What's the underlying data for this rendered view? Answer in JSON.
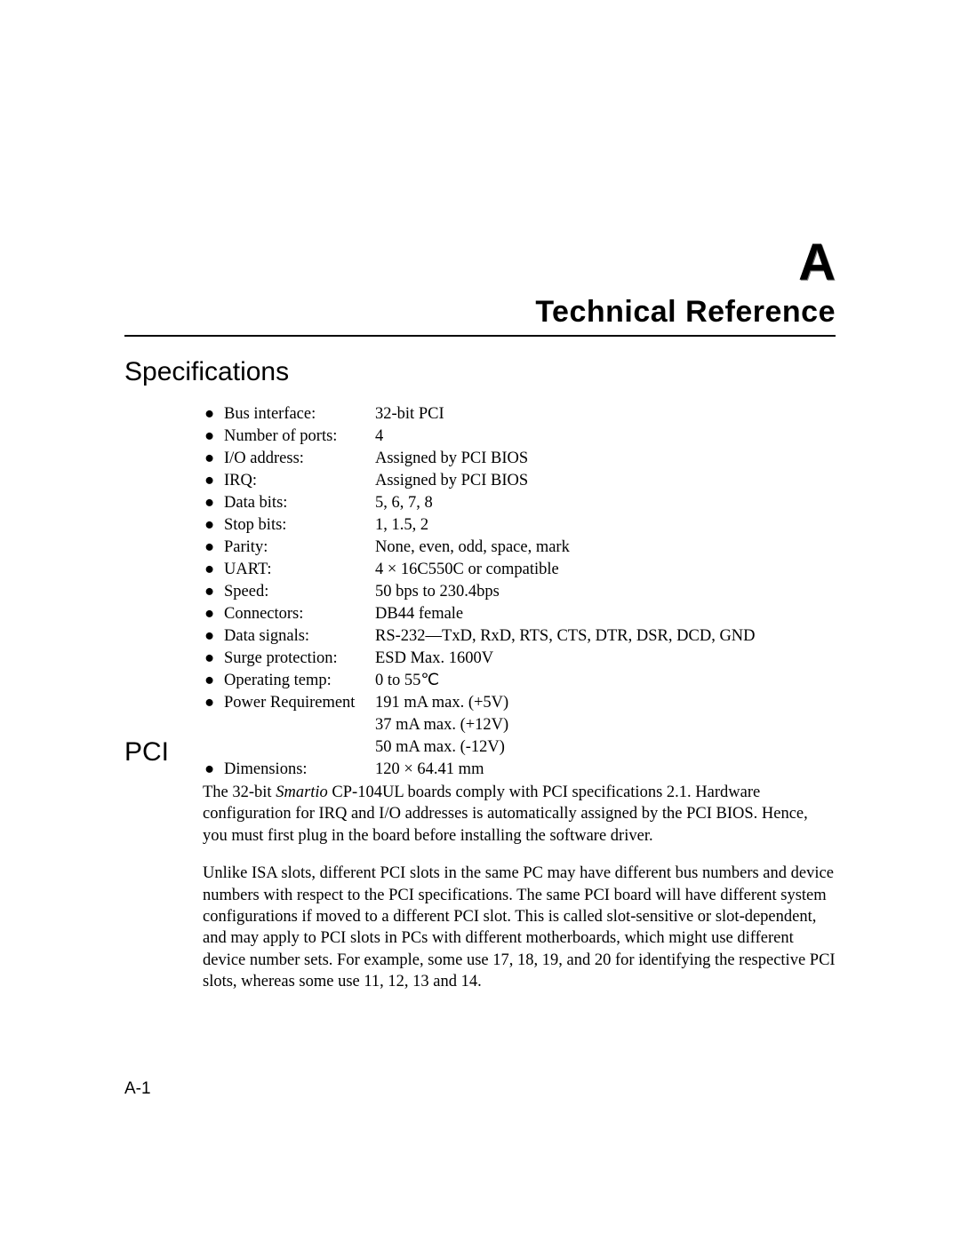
{
  "appendix_letter": "A",
  "title": "Technical Reference",
  "h2_specs": "Specifications",
  "h2_pci": "PCI",
  "bullet": "●",
  "specs": [
    {
      "label": "Bus interface:",
      "value": "32-bit PCI"
    },
    {
      "label": "Number of ports:",
      "value": "4"
    },
    {
      "label": "I/O address:",
      "value": "Assigned by PCI BIOS"
    },
    {
      "label": "IRQ:",
      "value": "Assigned by PCI BIOS"
    },
    {
      "label": "Data bits:",
      "value": "5, 6, 7, 8"
    },
    {
      "label": "Stop bits:",
      "value": "1, 1.5, 2"
    },
    {
      "label": "Parity:",
      "value": "None, even, odd, space, mark"
    },
    {
      "label": "UART:",
      "value": "4 × 16C550C or compatible"
    },
    {
      "label": "Speed:",
      "value": "50 bps to 230.4bps"
    },
    {
      "label": "Connectors:",
      "value": "DB44 female"
    },
    {
      "label": "Data signals:",
      "value": "RS-232—TxD, RxD, RTS, CTS, DTR, DSR, DCD, GND"
    },
    {
      "label": "Surge protection:",
      "value": "ESD Max. 1600V"
    },
    {
      "label": "Operating temp:",
      "value": "0 to 55℃"
    },
    {
      "label": "Power Requirement",
      "value": "191 mA max. (+5V)",
      "extra": [
        "37 mA max. (+12V)",
        "50 mA max. (-12V)"
      ]
    },
    {
      "label": "Dimensions:",
      "value": "120 × 64.41 mm"
    }
  ],
  "pci_para1_pre": "The 32-bit ",
  "pci_para1_italic": "Smartio",
  "pci_para1_post": " CP-104UL boards comply with PCI specifications 2.1. Hardware configuration for IRQ and I/O addresses is automatically assigned by the PCI BIOS. Hence, you must first plug in the board before installing the software driver.",
  "pci_para2": "Unlike ISA slots, different PCI slots in the same PC may have different bus numbers and device numbers with respect to the PCI specifications. The same PCI board will have different system configurations if moved to a different PCI slot. This is called slot-sensitive or slot-dependent, and may apply to PCI slots in PCs with different motherboards, which might use different device number sets. For example, some use 17, 18, 19, and 20 for identifying the respective PCI slots, whereas some use 11, 12, 13 and 14.",
  "page_number": "A-1"
}
